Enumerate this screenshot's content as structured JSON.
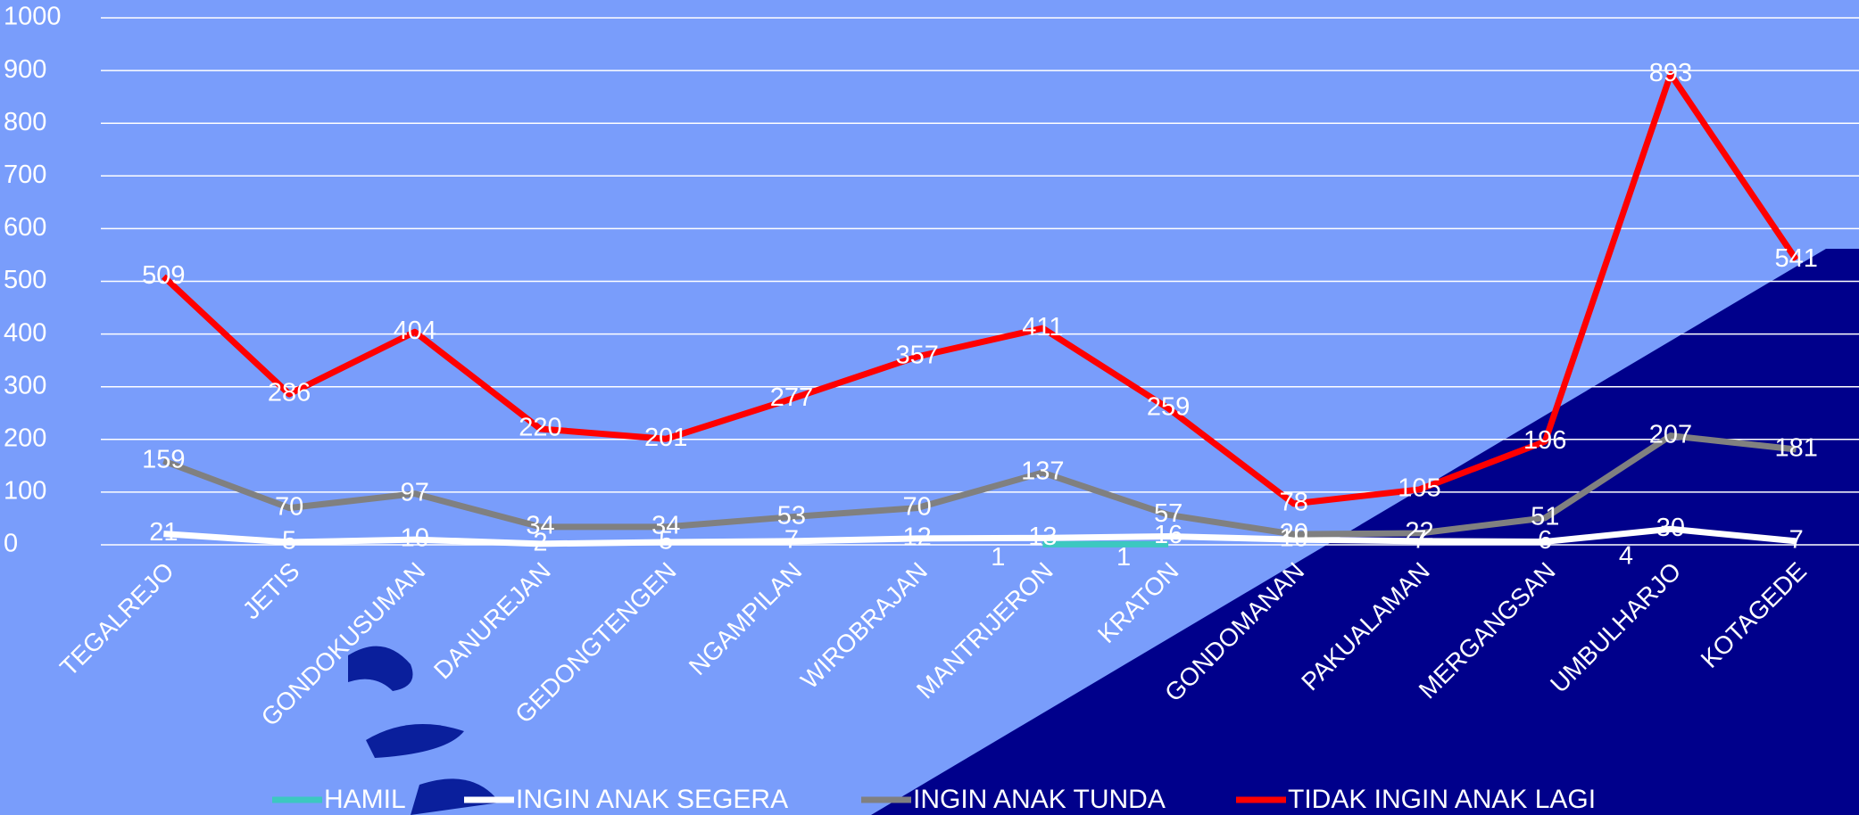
{
  "chart_data": {
    "type": "line",
    "categories": [
      "TEGALREJO",
      "JETIS",
      "GONDOKUSUMAN",
      "DANUREJAN",
      "GEDONGTENGEN",
      "NGAMPILAN",
      "WIROBRAJAN",
      "MANTRIJERON",
      "KRATON",
      "GONDOMANAN",
      "PAKUALAMAN",
      "MERGANGSAN",
      "UMBULHARJO",
      "KOTAGEDE"
    ],
    "series": [
      {
        "name": "HAMIL",
        "color": "#3cc8c0",
        "values": [
          null,
          null,
          null,
          null,
          null,
          null,
          null,
          1,
          1,
          null,
          null,
          null,
          4,
          null
        ]
      },
      {
        "name": "INGIN ANAK SEGERA",
        "color": "#ffffff",
        "values": [
          21,
          5,
          10,
          2,
          5,
          7,
          12,
          13,
          16,
          10,
          7,
          6,
          30,
          7
        ]
      },
      {
        "name": "INGIN ANAK TUNDA",
        "color": "#808080",
        "values": [
          159,
          70,
          97,
          34,
          34,
          53,
          70,
          137,
          57,
          20,
          22,
          51,
          207,
          181
        ]
      },
      {
        "name": "TIDAK INGIN ANAK LAGI",
        "color": "#ff0000",
        "values": [
          509,
          286,
          404,
          220,
          201,
          277,
          357,
          411,
          259,
          78,
          105,
          196,
          893,
          541
        ]
      }
    ],
    "ylim": [
      0,
      1000
    ],
    "yticks": [
      0,
      100,
      200,
      300,
      400,
      500,
      600,
      700,
      800,
      900,
      1000
    ],
    "grid": true
  }
}
